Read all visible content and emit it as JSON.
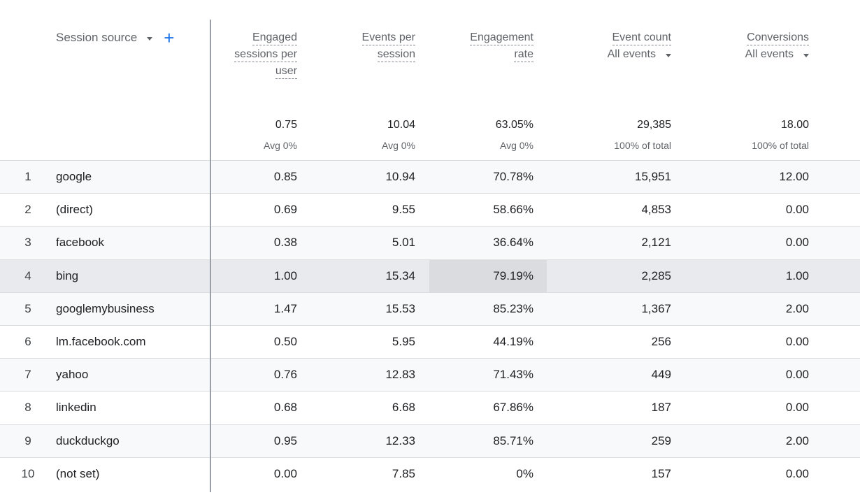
{
  "dimension": {
    "label": "Session source",
    "add_label": "+"
  },
  "columns": [
    {
      "lines": [
        "Engaged",
        "sessions per",
        "user"
      ],
      "sub": null,
      "total": "0.75",
      "total_sub": "Avg 0%"
    },
    {
      "lines": [
        "Events per",
        "session"
      ],
      "sub": null,
      "total": "10.04",
      "total_sub": "Avg 0%"
    },
    {
      "lines": [
        "Engagement",
        "rate"
      ],
      "sub": null,
      "total": "63.05%",
      "total_sub": "Avg 0%"
    },
    {
      "lines": [
        "Event count"
      ],
      "sub": "All events",
      "total": "29,385",
      "total_sub": "100% of total"
    },
    {
      "lines": [
        "Conversions"
      ],
      "sub": "All events",
      "total": "18.00",
      "total_sub": "100% of total"
    }
  ],
  "rows": [
    {
      "index": "1",
      "source": "google",
      "values": [
        "0.85",
        "10.94",
        "70.78%",
        "15,951",
        "12.00"
      ]
    },
    {
      "index": "2",
      "source": "(direct)",
      "values": [
        "0.69",
        "9.55",
        "58.66%",
        "4,853",
        "0.00"
      ]
    },
    {
      "index": "3",
      "source": "facebook",
      "values": [
        "0.38",
        "5.01",
        "36.64%",
        "2,121",
        "0.00"
      ]
    },
    {
      "index": "4",
      "source": "bing",
      "values": [
        "1.00",
        "15.34",
        "79.19%",
        "2,285",
        "1.00"
      ]
    },
    {
      "index": "5",
      "source": "googlemybusiness",
      "values": [
        "1.47",
        "15.53",
        "85.23%",
        "1,367",
        "2.00"
      ]
    },
    {
      "index": "6",
      "source": "lm.facebook.com",
      "values": [
        "0.50",
        "5.95",
        "44.19%",
        "256",
        "0.00"
      ]
    },
    {
      "index": "7",
      "source": "yahoo",
      "values": [
        "0.76",
        "12.83",
        "71.43%",
        "449",
        "0.00"
      ]
    },
    {
      "index": "8",
      "source": "linkedin",
      "values": [
        "0.68",
        "6.68",
        "67.86%",
        "187",
        "0.00"
      ]
    },
    {
      "index": "9",
      "source": "duckduckgo",
      "values": [
        "0.95",
        "12.33",
        "85.71%",
        "259",
        "2.00"
      ]
    },
    {
      "index": "10",
      "source": "(not set)",
      "values": [
        "0.00",
        "7.85",
        "0%",
        "157",
        "0.00"
      ]
    }
  ],
  "hovered_row": 4
}
